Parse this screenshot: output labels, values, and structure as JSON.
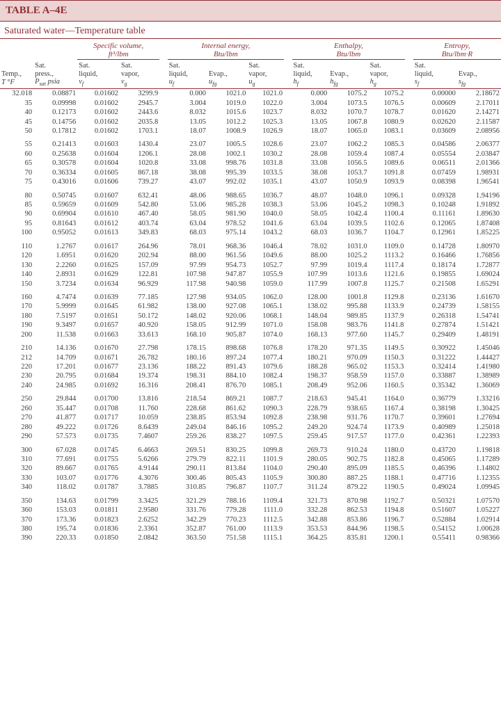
{
  "title": "TABLE A–4E",
  "subtitle": "Saturated water—Temperature table",
  "colors": {
    "accent": "#8f2f32",
    "header_bg": "#ecd3d4",
    "text": "#3c3c3c",
    "bg": "#ffffff"
  },
  "groups": [
    {
      "label": "Specific volume,",
      "unit": "ft³/lbm",
      "span": 2,
      "start": 2
    },
    {
      "label": "Internal energy,",
      "unit": "Btu/lbm",
      "span": 3,
      "start": 5
    },
    {
      "label": "Enthalpy,",
      "unit": "Btu/lbm",
      "span": 3,
      "start": 9
    },
    {
      "label": "Entropy,",
      "unit": "Btu/lbm·R",
      "span": 2,
      "start": 13
    }
  ],
  "col_headers": [
    {
      "lines": [
        "Temp.,"
      ],
      "sym": "T °F"
    },
    {
      "lines": [
        "Sat.",
        "press.,"
      ],
      "sym": "P_sat psia"
    },
    {
      "lines": [
        "Sat.",
        "liquid,"
      ],
      "sym": "v_f"
    },
    {
      "lines": [
        "Sat.",
        "vapor,"
      ],
      "sym": "v_g"
    },
    {
      "lines": [
        "Sat.",
        "liquid,"
      ],
      "sym": "u_f"
    },
    {
      "lines": [
        "Evap.,"
      ],
      "sym": "u_fg"
    },
    {
      "lines": [
        "Sat.",
        "vapor,"
      ],
      "sym": "u_g"
    },
    {
      "lines": [
        "Sat.",
        "liquid,"
      ],
      "sym": "h_f"
    },
    {
      "lines": [
        "Evap.,"
      ],
      "sym": "h_fg"
    },
    {
      "lines": [
        "Sat.",
        "vapor,"
      ],
      "sym": "h_g"
    },
    {
      "lines": [
        "Sat.",
        "liquid,"
      ],
      "sym": "s_f"
    },
    {
      "lines": [
        "Evap.,"
      ],
      "sym": "s_fg"
    }
  ],
  "row_groups": [
    [
      [
        "32.018",
        "0.08871",
        "0.01602",
        "3299.9",
        "0.000",
        "1021.0",
        "1021.0",
        "0.000",
        "1075.2",
        "1075.2",
        "0.00000",
        "2.18672"
      ],
      [
        "35",
        "0.09998",
        "0.01602",
        "2945.7",
        "3.004",
        "1019.0",
        "1022.0",
        "3.004",
        "1073.5",
        "1076.5",
        "0.00609",
        "2.17011"
      ],
      [
        "40",
        "0.12173",
        "0.01602",
        "2443.6",
        "8.032",
        "1015.6",
        "1023.7",
        "8.032",
        "1070.7",
        "1078.7",
        "0.01620",
        "2.14271"
      ],
      [
        "45",
        "0.14756",
        "0.01602",
        "2035.8",
        "13.05",
        "1012.2",
        "1025.3",
        "13.05",
        "1067.8",
        "1080.9",
        "0.02620",
        "2.11587"
      ],
      [
        "50",
        "0.17812",
        "0.01602",
        "1703.1",
        "18.07",
        "1008.9",
        "1026.9",
        "18.07",
        "1065.0",
        "1083.1",
        "0.03609",
        "2.08956"
      ]
    ],
    [
      [
        "55",
        "0.21413",
        "0.01603",
        "1430.4",
        "23.07",
        "1005.5",
        "1028.6",
        "23.07",
        "1062.2",
        "1085.3",
        "0.04586",
        "2.06377"
      ],
      [
        "60",
        "0.25638",
        "0.01604",
        "1206.1",
        "28.08",
        "1002.1",
        "1030.2",
        "28.08",
        "1059.4",
        "1087.4",
        "0.05554",
        "2.03847"
      ],
      [
        "65",
        "0.30578",
        "0.01604",
        "1020.8",
        "33.08",
        "998.76",
        "1031.8",
        "33.08",
        "1056.5",
        "1089.6",
        "0.06511",
        "2.01366"
      ],
      [
        "70",
        "0.36334",
        "0.01605",
        "867.18",
        "38.08",
        "995.39",
        "1033.5",
        "38.08",
        "1053.7",
        "1091.8",
        "0.07459",
        "1.98931"
      ],
      [
        "75",
        "0.43016",
        "0.01606",
        "739.27",
        "43.07",
        "992.02",
        "1035.1",
        "43.07",
        "1050.9",
        "1093.9",
        "0.08398",
        "1.96541"
      ]
    ],
    [
      [
        "80",
        "0.50745",
        "0.01607",
        "632.41",
        "48.06",
        "988.65",
        "1036.7",
        "48.07",
        "1048.0",
        "1096.1",
        "0.09328",
        "1.94196"
      ],
      [
        "85",
        "0.59659",
        "0.01609",
        "542.80",
        "53.06",
        "985.28",
        "1038.3",
        "53.06",
        "1045.2",
        "1098.3",
        "0.10248",
        "1.91892"
      ],
      [
        "90",
        "0.69904",
        "0.01610",
        "467.40",
        "58.05",
        "981.90",
        "1040.0",
        "58.05",
        "1042.4",
        "1100.4",
        "0.11161",
        "1.89630"
      ],
      [
        "95",
        "0.81643",
        "0.01612",
        "403.74",
        "63.04",
        "978.52",
        "1041.6",
        "63.04",
        "1039.5",
        "1102.6",
        "0.12065",
        "1.87408"
      ],
      [
        "100",
        "0.95052",
        "0.01613",
        "349.83",
        "68.03",
        "975.14",
        "1043.2",
        "68.03",
        "1036.7",
        "1104.7",
        "0.12961",
        "1.85225"
      ]
    ],
    [
      [
        "110",
        "1.2767",
        "0.01617",
        "264.96",
        "78.01",
        "968.36",
        "1046.4",
        "78.02",
        "1031.0",
        "1109.0",
        "0.14728",
        "1.80970"
      ],
      [
        "120",
        "1.6951",
        "0.01620",
        "202.94",
        "88.00",
        "961.56",
        "1049.6",
        "88.00",
        "1025.2",
        "1113.2",
        "0.16466",
        "1.76856"
      ],
      [
        "130",
        "2.2260",
        "0.01625",
        "157.09",
        "97.99",
        "954.73",
        "1052.7",
        "97.99",
        "1019.4",
        "1117.4",
        "0.18174",
        "1.72877"
      ],
      [
        "140",
        "2.8931",
        "0.01629",
        "122.81",
        "107.98",
        "947.87",
        "1055.9",
        "107.99",
        "1013.6",
        "1121.6",
        "0.19855",
        "1.69024"
      ],
      [
        "150",
        "3.7234",
        "0.01634",
        "96.929",
        "117.98",
        "940.98",
        "1059.0",
        "117.99",
        "1007.8",
        "1125.7",
        "0.21508",
        "1.65291"
      ]
    ],
    [
      [
        "160",
        "4.7474",
        "0.01639",
        "77.185",
        "127.98",
        "934.05",
        "1062.0",
        "128.00",
        "1001.8",
        "1129.8",
        "0.23136",
        "1.61670"
      ],
      [
        "170",
        "5.9999",
        "0.01645",
        "61.982",
        "138.00",
        "927.08",
        "1065.1",
        "138.02",
        "995.88",
        "1133.9",
        "0.24739",
        "1.58155"
      ],
      [
        "180",
        "7.5197",
        "0.01651",
        "50.172",
        "148.02",
        "920.06",
        "1068.1",
        "148.04",
        "989.85",
        "1137.9",
        "0.26318",
        "1.54741"
      ],
      [
        "190",
        "9.3497",
        "0.01657",
        "40.920",
        "158.05",
        "912.99",
        "1071.0",
        "158.08",
        "983.76",
        "1141.8",
        "0.27874",
        "1.51421"
      ],
      [
        "200",
        "11.538",
        "0.01663",
        "33.613",
        "168.10",
        "905.87",
        "1074.0",
        "168.13",
        "977.60",
        "1145.7",
        "0.29409",
        "1.48191"
      ]
    ],
    [
      [
        "210",
        "14.136",
        "0.01670",
        "27.798",
        "178.15",
        "898.68",
        "1076.8",
        "178.20",
        "971.35",
        "1149.5",
        "0.30922",
        "1.45046"
      ],
      [
        "212",
        "14.709",
        "0.01671",
        "26.782",
        "180.16",
        "897.24",
        "1077.4",
        "180.21",
        "970.09",
        "1150.3",
        "0.31222",
        "1.44427"
      ],
      [
        "220",
        "17.201",
        "0.01677",
        "23.136",
        "188.22",
        "891.43",
        "1079.6",
        "188.28",
        "965.02",
        "1153.3",
        "0.32414",
        "1.41980"
      ],
      [
        "230",
        "20.795",
        "0.01684",
        "19.374",
        "198.31",
        "884.10",
        "1082.4",
        "198.37",
        "958.59",
        "1157.0",
        "0.33887",
        "1.38989"
      ],
      [
        "240",
        "24.985",
        "0.01692",
        "16.316",
        "208.41",
        "876.70",
        "1085.1",
        "208.49",
        "952.06",
        "1160.5",
        "0.35342",
        "1.36069"
      ]
    ],
    [
      [
        "250",
        "29.844",
        "0.01700",
        "13.816",
        "218.54",
        "869.21",
        "1087.7",
        "218.63",
        "945.41",
        "1164.0",
        "0.36779",
        "1.33216"
      ],
      [
        "260",
        "35.447",
        "0.01708",
        "11.760",
        "228.68",
        "861.62",
        "1090.3",
        "228.79",
        "938.65",
        "1167.4",
        "0.38198",
        "1.30425"
      ],
      [
        "270",
        "41.877",
        "0.01717",
        "10.059",
        "238.85",
        "853.94",
        "1092.8",
        "238.98",
        "931.76",
        "1170.7",
        "0.39601",
        "1.27694"
      ],
      [
        "280",
        "49.222",
        "0.01726",
        "8.6439",
        "249.04",
        "846.16",
        "1095.2",
        "249.20",
        "924.74",
        "1173.9",
        "0.40989",
        "1.25018"
      ],
      [
        "290",
        "57.573",
        "0.01735",
        "7.4607",
        "259.26",
        "838.27",
        "1097.5",
        "259.45",
        "917.57",
        "1177.0",
        "0.42361",
        "1.22393"
      ]
    ],
    [
      [
        "300",
        "67.028",
        "0.01745",
        "6.4663",
        "269.51",
        "830.25",
        "1099.8",
        "269.73",
        "910.24",
        "1180.0",
        "0.43720",
        "1.19818"
      ],
      [
        "310",
        "77.691",
        "0.01755",
        "5.6266",
        "279.79",
        "822.11",
        "1101.9",
        "280.05",
        "902.75",
        "1182.8",
        "0.45065",
        "1.17289"
      ],
      [
        "320",
        "89.667",
        "0.01765",
        "4.9144",
        "290.11",
        "813.84",
        "1104.0",
        "290.40",
        "895.09",
        "1185.5",
        "0.46396",
        "1.14802"
      ],
      [
        "330",
        "103.07",
        "0.01776",
        "4.3076",
        "300.46",
        "805.43",
        "1105.9",
        "300.80",
        "887.25",
        "1188.1",
        "0.47716",
        "1.12355"
      ],
      [
        "340",
        "118.02",
        "0.01787",
        "3.7885",
        "310.85",
        "796.87",
        "1107.7",
        "311.24",
        "879.22",
        "1190.5",
        "0.49024",
        "1.09945"
      ]
    ],
    [
      [
        "350",
        "134.63",
        "0.01799",
        "3.3425",
        "321.29",
        "788.16",
        "1109.4",
        "321.73",
        "870.98",
        "1192.7",
        "0.50321",
        "1.07570"
      ],
      [
        "360",
        "153.03",
        "0.01811",
        "2.9580",
        "331.76",
        "779.28",
        "1111.0",
        "332.28",
        "862.53",
        "1194.8",
        "0.51607",
        "1.05227"
      ],
      [
        "370",
        "173.36",
        "0.01823",
        "2.6252",
        "342.29",
        "770.23",
        "1112.5",
        "342.88",
        "853.86",
        "1196.7",
        "0.52884",
        "1.02914"
      ],
      [
        "380",
        "195.74",
        "0.01836",
        "2.3361",
        "352.87",
        "761.00",
        "1113.9",
        "353.53",
        "844.96",
        "1198.5",
        "0.54152",
        "1.00628"
      ],
      [
        "390",
        "220.33",
        "0.01850",
        "2.0842",
        "363.50",
        "751.58",
        "1115.1",
        "364.25",
        "835.81",
        "1200.1",
        "0.55411",
        "0.98366"
      ]
    ]
  ]
}
